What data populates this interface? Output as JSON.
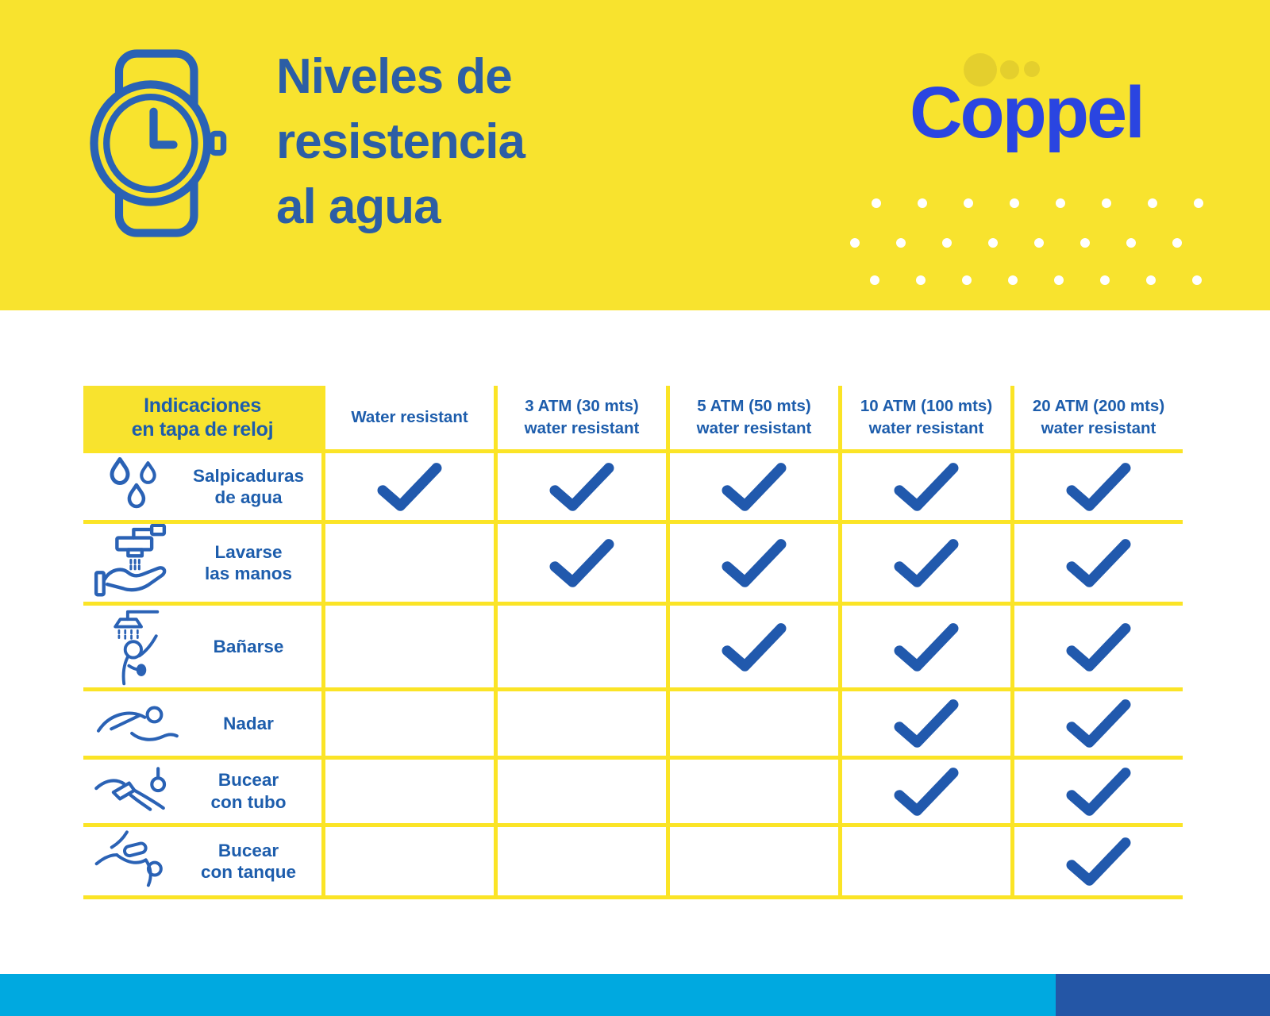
{
  "header": {
    "title_lines": [
      "Niveles de",
      "resistencia",
      "al agua"
    ],
    "brand": "Coppel"
  },
  "table": {
    "corner_label_lines": [
      "Indicaciones",
      "en tapa de reloj"
    ],
    "columns": [
      {
        "label_lines": [
          "Water resistant"
        ]
      },
      {
        "label_lines": [
          "3 ATM (30 mts)",
          "water resistant"
        ]
      },
      {
        "label_lines": [
          "5 ATM (50 mts)",
          "water resistant"
        ]
      },
      {
        "label_lines": [
          "10 ATM (100 mts)",
          "water resistant"
        ]
      },
      {
        "label_lines": [
          "20 ATM (200 mts)",
          "water resistant"
        ]
      }
    ],
    "rows": [
      {
        "icon": "water-drops-icon",
        "label_lines": [
          "Salpicaduras",
          "de agua"
        ],
        "checks": [
          true,
          true,
          true,
          true,
          true
        ]
      },
      {
        "icon": "hand-washing-icon",
        "label_lines": [
          "Lavarse",
          "las manos"
        ],
        "checks": [
          false,
          true,
          true,
          true,
          true
        ]
      },
      {
        "icon": "shower-icon",
        "label_lines": [
          "Bañarse"
        ],
        "checks": [
          false,
          false,
          true,
          true,
          true
        ]
      },
      {
        "icon": "swimming-icon",
        "label_lines": [
          "Nadar"
        ],
        "checks": [
          false,
          false,
          false,
          true,
          true
        ]
      },
      {
        "icon": "snorkeling-icon",
        "label_lines": [
          "Bucear",
          "con tubo"
        ],
        "checks": [
          false,
          false,
          false,
          true,
          true
        ]
      },
      {
        "icon": "scuba-diving-icon",
        "label_lines": [
          "Bucear",
          "con tanque"
        ],
        "checks": [
          false,
          false,
          false,
          false,
          true
        ]
      }
    ]
  },
  "colors": {
    "brand_yellow": "#F8E32E",
    "grid_yellow": "#FBE426",
    "title_blue": "#2C5EA5",
    "table_blue": "#1D5DAC",
    "check_blue": "#2159AD",
    "icon_blue": "#2A62B5",
    "logo_blue": "#2A45E1",
    "logo_dot_yellow": "#E4CF2D",
    "dot_white": "#FFFFFF",
    "footer_cyan": "#00A9E0",
    "footer_navy": "#2456A6"
  }
}
